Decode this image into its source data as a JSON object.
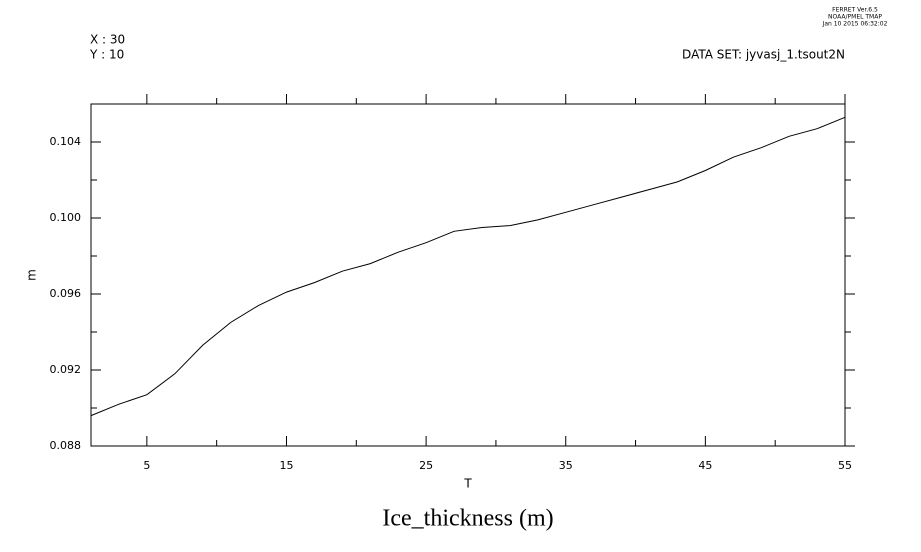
{
  "chart_data": {
    "type": "line",
    "title": "Ice_thickness (m)",
    "x_label": "T",
    "y_label": "m",
    "header_left": [
      "X : 30",
      "Y : 10"
    ],
    "dataset": "DATA SET: jyvasj_1.tsout2N",
    "stamp": [
      "FERRET  Ver.6.5",
      "NOAA/PMEL TMAP",
      "Jan 10 2015 06:32:02"
    ],
    "x": [
      1,
      3,
      5,
      7,
      9,
      11,
      13,
      15,
      17,
      19,
      21,
      23,
      25,
      27,
      29,
      31,
      33,
      35,
      37,
      39,
      41,
      43,
      45,
      47,
      49,
      51,
      53,
      55
    ],
    "values": [
      0.0896,
      0.0902,
      0.0907,
      0.0918,
      0.0933,
      0.0945,
      0.0954,
      0.0961,
      0.0966,
      0.0972,
      0.0976,
      0.0982,
      0.0987,
      0.0993,
      0.0995,
      0.0996,
      0.0999,
      0.1003,
      0.1007,
      0.1011,
      0.1015,
      0.1019,
      0.1025,
      0.1032,
      0.1037,
      0.1043,
      0.1047,
      0.1053
    ],
    "color": "#000000",
    "xlim": [
      1,
      55
    ],
    "ylim": [
      0.088,
      0.106
    ],
    "xticks": [
      5,
      15,
      25,
      35,
      45,
      55
    ],
    "yticks": [
      0.088,
      0.092,
      0.096,
      {
        "value": 0.1,
        "label": "0.100"
      },
      0.104
    ]
  }
}
